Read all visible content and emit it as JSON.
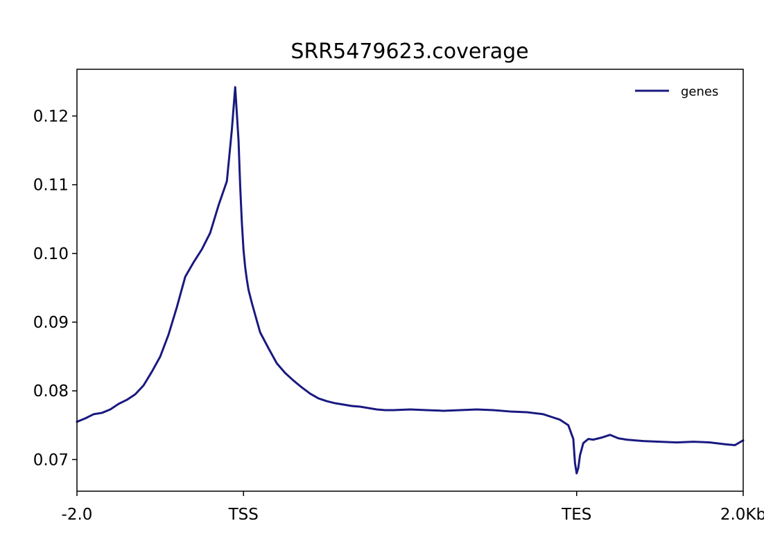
{
  "chart_data": {
    "type": "line",
    "title": "SRR5479623.coverage",
    "xlabel": "",
    "ylabel": "",
    "x_tick_labels": [
      {
        "x": 0,
        "label": "-2.0"
      },
      {
        "x": 1,
        "label": "TSS"
      },
      {
        "x": 3,
        "label": "TES"
      },
      {
        "x": 4,
        "label": "2.0Kb"
      }
    ],
    "y_ticks": [
      0.07,
      0.08,
      0.09,
      0.1,
      0.11,
      0.12
    ],
    "y_tick_labels": [
      "0.07",
      "0.08",
      "0.09",
      "0.10",
      "0.11",
      "0.12"
    ],
    "xlim": [
      0,
      4
    ],
    "ylim": [
      0.0654,
      0.1268
    ],
    "grid": false,
    "legend_position": "top-right",
    "color": "#191980",
    "series": [
      {
        "name": "genes",
        "x": [
          0,
          0.05,
          0.1,
          0.15,
          0.2,
          0.25,
          0.3,
          0.35,
          0.4,
          0.45,
          0.5,
          0.55,
          0.6,
          0.65,
          0.7,
          0.75,
          0.8,
          0.85,
          0.9,
          0.93,
          0.95,
          0.97,
          0.98,
          0.99,
          1.0,
          1.01,
          1.02,
          1.03,
          1.05,
          1.08,
          1.1,
          1.15,
          1.2,
          1.25,
          1.3,
          1.35,
          1.4,
          1.45,
          1.5,
          1.55,
          1.6,
          1.65,
          1.7,
          1.75,
          1.8,
          1.85,
          1.9,
          2.0,
          2.1,
          2.2,
          2.3,
          2.4,
          2.5,
          2.6,
          2.7,
          2.8,
          2.85,
          2.9,
          2.95,
          2.98,
          2.99,
          3.0,
          3.01,
          3.02,
          3.04,
          3.07,
          3.1,
          3.15,
          3.2,
          3.25,
          3.3,
          3.35,
          3.4,
          3.5,
          3.6,
          3.7,
          3.8,
          3.9,
          3.95,
          4.0
        ],
        "y": [
          0.0755,
          0.076,
          0.0766,
          0.0768,
          0.0773,
          0.0781,
          0.0787,
          0.0795,
          0.0808,
          0.0828,
          0.085,
          0.0882,
          0.0922,
          0.0966,
          0.0987,
          0.1006,
          0.103,
          0.107,
          0.1105,
          0.118,
          0.1242,
          0.1165,
          0.1098,
          0.1045,
          0.1005,
          0.098,
          0.0962,
          0.0947,
          0.0928,
          0.0902,
          0.0885,
          0.0862,
          0.084,
          0.0826,
          0.0815,
          0.0805,
          0.0796,
          0.0789,
          0.0785,
          0.0782,
          0.078,
          0.0778,
          0.0777,
          0.0775,
          0.0773,
          0.0772,
          0.0772,
          0.0773,
          0.0772,
          0.0771,
          0.0772,
          0.0773,
          0.0772,
          0.077,
          0.0769,
          0.0766,
          0.0762,
          0.0758,
          0.075,
          0.073,
          0.0695,
          0.068,
          0.0688,
          0.0706,
          0.0724,
          0.073,
          0.0729,
          0.0732,
          0.0736,
          0.0731,
          0.0729,
          0.0728,
          0.0727,
          0.0726,
          0.0725,
          0.0726,
          0.0725,
          0.0722,
          0.0721,
          0.0728
        ]
      }
    ]
  }
}
